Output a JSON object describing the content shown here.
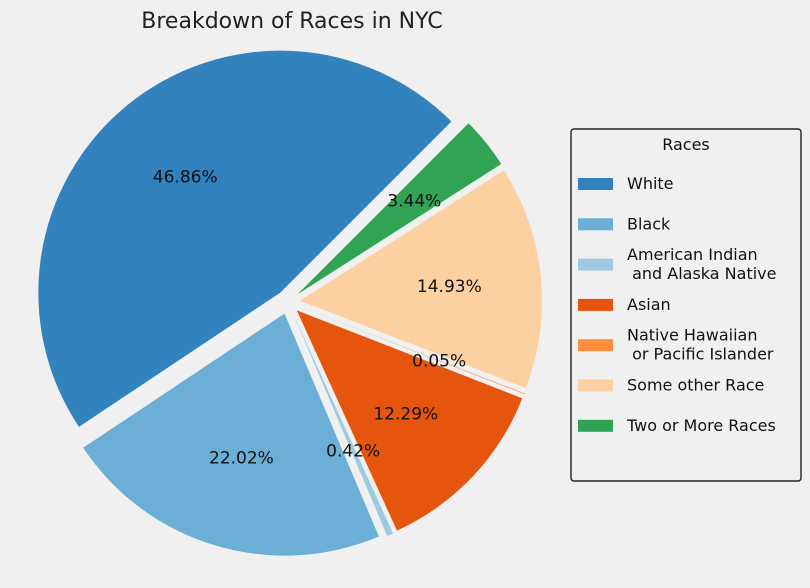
{
  "chart_data": {
    "type": "pie",
    "title": "Breakdown of Races in NYC",
    "legend_title": "Races",
    "legend_position": "right",
    "slices": [
      {
        "name": "White",
        "lines": [
          "White"
        ],
        "value": 46.86,
        "label": "46.86%",
        "color": "#3182bd"
      },
      {
        "name": "Black",
        "lines": [
          "Black"
        ],
        "value": 22.02,
        "label": "22.02%",
        "color": "#6baed6"
      },
      {
        "name": "American Indian and Alaska Native",
        "lines": [
          "American Indian",
          " and Alaska Native"
        ],
        "value": 0.42,
        "label": "0.42%",
        "color": "#9ecae1"
      },
      {
        "name": "Asian",
        "lines": [
          "Asian"
        ],
        "value": 12.29,
        "label": "12.29%",
        "color": "#e6550d"
      },
      {
        "name": "Native Hawaiian or Pacific Islander",
        "lines": [
          "Native Hawaiian",
          " or Pacific Islander"
        ],
        "value": 0.05,
        "label": "0.05%",
        "color": "#fd8d3c"
      },
      {
        "name": "Some other Race",
        "lines": [
          "Some other Race"
        ],
        "value": 14.93,
        "label": "14.93%",
        "color": "#fdd0a2"
      },
      {
        "name": "Two or More Races",
        "lines": [
          "Two or More Races"
        ],
        "value": 3.44,
        "label": "3.44%",
        "color": "#31a354"
      }
    ]
  }
}
